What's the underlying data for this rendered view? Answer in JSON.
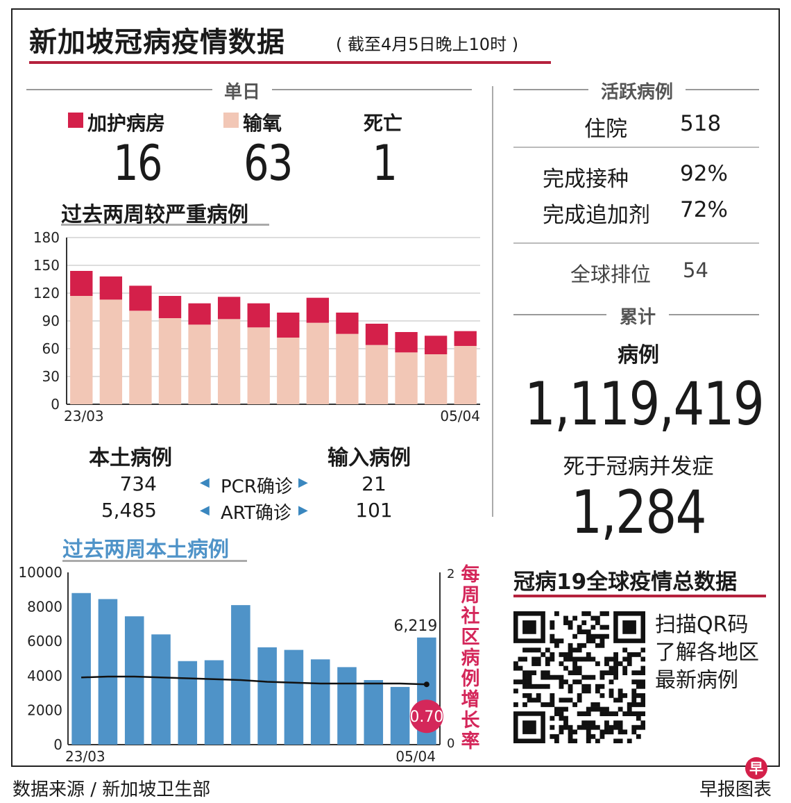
{
  "header": {
    "title": "新加坡冠病疫情数据",
    "subtitle": "( 截至4月5日晚上10时 )"
  },
  "daily": {
    "heading": "单日",
    "icu": {
      "label": "加护病房",
      "value": "16",
      "color": "#d4204a"
    },
    "oxygen": {
      "label": "输氧",
      "value": "63",
      "color": "#f2c7b6"
    },
    "deaths": {
      "label": "死亡",
      "value": "1"
    }
  },
  "severe_chart_title": "过去两周较严重病例",
  "local_chart_title": "过去两周本土病例",
  "cases_table": {
    "local_header": "本土病例",
    "imported_header": "输入病例",
    "rows": [
      {
        "local": "734",
        "label": "PCR确诊",
        "imported": "21"
      },
      {
        "local": "5,485",
        "label": "ART确诊",
        "imported": "101"
      }
    ]
  },
  "active": {
    "heading": "活跃病例",
    "hospitalised_label": "住院",
    "hospitalised_value": "518",
    "vaccinated_label": "完成接种",
    "vaccinated_value": "92%",
    "booster_label": "完成追加剂",
    "booster_value": "72%",
    "rank_label": "全球排位",
    "rank_value": "54"
  },
  "cumulative": {
    "heading": "累计",
    "cases_label": "病例",
    "cases_value": "1,119,419",
    "deaths_label": "死于冠病并发症",
    "deaths_value": "1,284"
  },
  "global": {
    "title": "冠病19全球疫情总数据",
    "qr_text": [
      "扫描QR码",
      "了解各地区",
      "最新病例"
    ]
  },
  "footer": {
    "source": "数据来源 / 新加坡卫生部",
    "credit": "早报图表",
    "logo_char": "早"
  },
  "chart_data": [
    {
      "type": "bar",
      "stacked": true,
      "title": "过去两周较严重病例",
      "x_start_label": "23/03",
      "x_end_label": "05/04",
      "ylim": [
        0,
        180
      ],
      "yticks": [
        0,
        30,
        60,
        90,
        120,
        150,
        180
      ],
      "grid": true,
      "series": [
        {
          "name": "输氧",
          "color": "#f2c7b6",
          "values": [
            117,
            113,
            101,
            93,
            86,
            92,
            83,
            72,
            88,
            76,
            64,
            56,
            54,
            63
          ]
        },
        {
          "name": "加护病房",
          "color": "#d4204a",
          "values": [
            27,
            25,
            27,
            24,
            23,
            24,
            26,
            27,
            27,
            23,
            23,
            22,
            20,
            16
          ]
        }
      ]
    },
    {
      "type": "bar",
      "title": "过去两周本土病例",
      "x_start_label": "23/03",
      "x_end_label": "05/04",
      "ylim": [
        0,
        10000
      ],
      "yticks": [
        0,
        2000,
        4000,
        6000,
        8000,
        10000
      ],
      "y2lim": [
        0,
        2
      ],
      "y2ticks": [
        0,
        2
      ],
      "y2label": "每周社区病例增长率",
      "bar_color": "#4f93c8",
      "values": [
        8800,
        8450,
        7450,
        6400,
        4850,
        4900,
        8100,
        5650,
        5500,
        4950,
        4500,
        3750,
        3350,
        6219
      ],
      "last_bar_label": "6,219",
      "growth_line": {
        "color": "#111",
        "values": [
          0.78,
          0.79,
          0.79,
          0.78,
          0.77,
          0.76,
          0.75,
          0.73,
          0.72,
          0.71,
          0.71,
          0.71,
          0.71,
          0.7
        ]
      },
      "last_growth_label": "0.70",
      "growth_badge_color": "#d4275a"
    }
  ]
}
